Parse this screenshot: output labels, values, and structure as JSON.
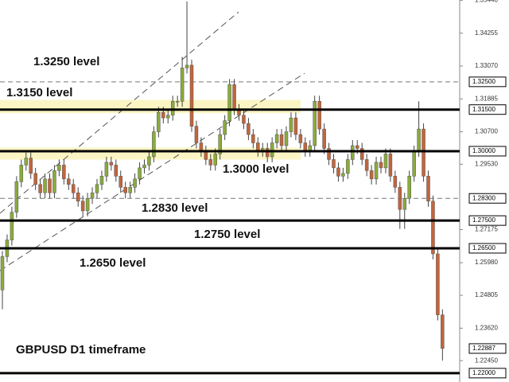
{
  "chart_data": {
    "type": "candlestick",
    "title": "GBPUSD D1 timeframe",
    "up_color": "#8aab3c",
    "down_color": "#c2653c",
    "zone_color": "#fbf5c4",
    "ylim": [
      1.2168,
      1.3545
    ],
    "yticks": [
      {
        "value": 1.3544,
        "label": "1.35440"
      },
      1.34255,
      {
        "value": 1.3307,
        "label": "1.33070"
      },
      1.31885,
      {
        "value": 1.307,
        "label": "1.30700"
      },
      {
        "value": 1.2953,
        "label": "1.29530"
      },
      1.27175,
      {
        "value": 1.2598,
        "label": "1.25980"
      },
      1.24805,
      {
        "value": 1.2362,
        "label": "1.23620"
      },
      {
        "value": 1.2245,
        "label": "1.22450"
      }
    ],
    "levels": [
      {
        "value": 1.325,
        "label": "1.32500",
        "style": "dashed"
      },
      {
        "value": 1.315,
        "label": "1.31500",
        "style": "solid"
      },
      {
        "value": 1.3,
        "label": "1.30000",
        "style": "solid"
      },
      {
        "value": 1.283,
        "label": "1.28300",
        "style": "dashed"
      },
      {
        "value": 1.275,
        "label": "1.27500",
        "style": "solid"
      },
      {
        "value": 1.265,
        "label": "1.26500",
        "style": "solid"
      },
      {
        "value": 1.22,
        "label": "1.22000",
        "style": "solid"
      }
    ],
    "last_price": {
      "value": 1.22887,
      "label": "1.22887"
    },
    "zones": [
      [
        1.3137,
        1.3185
      ],
      [
        1.297,
        1.3013
      ]
    ],
    "annotations": [
      "1.3250 level",
      "1.3150 level",
      "1.3000 level",
      "1.2830 level",
      "1.2750 level",
      "1.2650 level"
    ],
    "open": [
      1.25,
      1.262,
      1.268,
      1.278,
      1.289,
      1.295,
      1.2975,
      1.292,
      1.288,
      1.285,
      1.29,
      1.285,
      1.293,
      1.295,
      1.29,
      1.288,
      1.285,
      1.282,
      1.2785,
      1.283,
      1.285,
      1.288,
      1.291,
      1.296,
      1.295,
      1.291,
      1.287,
      1.285,
      1.287,
      1.29,
      1.294,
      1.295,
      1.298,
      1.307,
      1.314,
      1.312,
      1.313,
      1.318,
      1.318,
      1.33,
      1.331,
      1.309,
      1.303,
      1.3,
      1.297,
      1.295,
      1.299,
      1.306,
      1.311,
      1.324,
      1.315,
      1.313,
      1.31,
      1.306,
      1.303,
      1.3,
      1.301,
      1.298,
      1.303,
      1.306,
      1.302,
      1.307,
      1.312,
      1.306,
      1.303,
      1.3,
      1.302,
      1.318,
      1.308,
      1.301,
      1.297,
      1.294,
      1.291,
      1.292,
      1.297,
      1.302,
      1.301,
      1.297,
      1.293,
      1.29,
      1.296,
      1.294,
      1.299,
      1.291,
      1.287,
      1.279,
      1.283,
      1.291,
      1.3,
      1.308,
      1.291,
      1.282,
      1.263,
      1.241
    ],
    "high": [
      1.264,
      1.27,
      1.28,
      1.291,
      1.297,
      1.2995,
      1.2995,
      1.294,
      1.29,
      1.292,
      1.292,
      1.295,
      1.297,
      1.297,
      1.292,
      1.29,
      1.287,
      1.284,
      1.285,
      1.287,
      1.29,
      1.293,
      1.298,
      1.298,
      1.297,
      1.293,
      1.289,
      1.289,
      1.292,
      1.296,
      1.297,
      1.3,
      1.309,
      1.316,
      1.316,
      1.315,
      1.32,
      1.32,
      1.334,
      1.354,
      1.333,
      1.311,
      1.305,
      1.302,
      1.299,
      1.301,
      1.308,
      1.313,
      1.326,
      1.326,
      1.317,
      1.315,
      1.312,
      1.308,
      1.305,
      1.303,
      1.303,
      1.305,
      1.308,
      1.308,
      1.309,
      1.314,
      1.314,
      1.308,
      1.305,
      1.304,
      1.32,
      1.32,
      1.31,
      1.303,
      1.299,
      1.296,
      1.294,
      1.299,
      1.304,
      1.304,
      1.303,
      1.299,
      1.295,
      1.298,
      1.298,
      1.301,
      1.301,
      1.293,
      1.289,
      1.285,
      1.293,
      1.302,
      1.318,
      1.31,
      1.293,
      1.284,
      1.265,
      1.243
    ],
    "low": [
      1.243,
      1.26,
      1.266,
      1.276,
      1.287,
      1.293,
      1.29,
      1.286,
      1.283,
      1.283,
      1.283,
      1.283,
      1.291,
      1.288,
      1.286,
      1.283,
      1.28,
      1.2765,
      1.2765,
      1.281,
      1.283,
      1.286,
      1.289,
      1.293,
      1.289,
      1.285,
      1.283,
      1.283,
      1.285,
      1.288,
      1.292,
      1.293,
      1.296,
      1.305,
      1.31,
      1.31,
      1.311,
      1.316,
      1.316,
      1.328,
      1.307,
      1.301,
      1.298,
      1.295,
      1.293,
      1.293,
      1.297,
      1.304,
      1.309,
      1.313,
      1.311,
      1.308,
      1.304,
      1.301,
      1.298,
      1.298,
      1.296,
      1.296,
      1.301,
      1.3,
      1.3,
      1.305,
      1.304,
      1.301,
      1.298,
      1.298,
      1.3,
      1.306,
      1.299,
      1.295,
      1.292,
      1.289,
      1.289,
      1.29,
      1.295,
      1.299,
      1.295,
      1.291,
      1.288,
      1.288,
      1.292,
      1.292,
      1.289,
      1.285,
      1.272,
      1.272,
      1.281,
      1.289,
      1.298,
      1.289,
      1.28,
      1.261,
      1.239,
      1.2245
    ],
    "close": [
      1.262,
      1.268,
      1.278,
      1.289,
      1.295,
      1.2975,
      1.292,
      1.288,
      1.285,
      1.29,
      1.285,
      1.293,
      1.295,
      1.29,
      1.288,
      1.285,
      1.282,
      1.2785,
      1.283,
      1.285,
      1.288,
      1.291,
      1.296,
      1.295,
      1.291,
      1.287,
      1.285,
      1.287,
      1.29,
      1.294,
      1.295,
      1.298,
      1.307,
      1.314,
      1.312,
      1.313,
      1.318,
      1.318,
      1.33,
      1.331,
      1.309,
      1.303,
      1.3,
      1.297,
      1.295,
      1.299,
      1.306,
      1.311,
      1.324,
      1.315,
      1.313,
      1.31,
      1.306,
      1.303,
      1.3,
      1.301,
      1.298,
      1.303,
      1.306,
      1.302,
      1.307,
      1.312,
      1.306,
      1.303,
      1.3,
      1.302,
      1.318,
      1.308,
      1.301,
      1.297,
      1.294,
      1.291,
      1.292,
      1.297,
      1.302,
      1.301,
      1.297,
      1.293,
      1.29,
      1.296,
      1.294,
      1.299,
      1.291,
      1.287,
      1.279,
      1.283,
      1.291,
      1.3,
      1.308,
      1.291,
      1.282,
      1.263,
      1.241,
      1.2289
    ]
  }
}
